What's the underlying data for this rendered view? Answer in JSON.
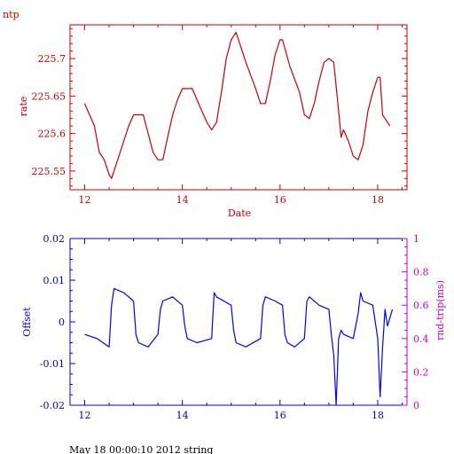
{
  "colors": {
    "rate": "#cc0000",
    "offset_series": "#0000ff",
    "offset_axis": "#0000cc",
    "roundtrip_axis": "#cc00cc",
    "background": "#ffffff",
    "footer": "#000000"
  },
  "footer": "May 18 00:00:10 2012 string",
  "chart_data": [
    {
      "type": "line",
      "title": "ntp",
      "xlabel": "Date",
      "ylabel": "rate",
      "xlim": [
        11.7,
        18.6
      ],
      "ylim": [
        225.525,
        225.745
      ],
      "xticks": [
        12,
        14,
        16,
        18
      ],
      "yticks": [
        225.55,
        225.6,
        225.65,
        225.7
      ],
      "ytick_labels": [
        "225.55",
        "225.6",
        "225.65",
        "225.7"
      ],
      "series": [
        {
          "x": [
            12.0,
            12.1,
            12.2,
            12.3,
            12.4,
            12.5,
            12.55,
            12.7,
            12.9,
            13.0,
            13.1,
            13.2,
            13.3,
            13.4,
            13.5,
            13.6,
            13.7,
            13.8,
            13.9,
            14.0,
            14.1,
            14.2,
            14.3,
            14.4,
            14.5,
            14.6,
            14.7,
            14.8,
            14.9,
            15.0,
            15.1,
            15.15,
            15.3,
            15.5,
            15.6,
            15.7,
            15.8,
            15.9,
            16.0,
            16.05,
            16.2,
            16.4,
            16.5,
            16.6,
            16.7,
            16.8,
            16.9,
            17.0,
            17.1,
            17.2,
            17.25,
            17.3,
            17.4,
            17.5,
            17.6,
            17.7,
            17.8,
            17.9,
            18.0,
            18.05,
            18.1,
            18.15,
            18.25
          ],
          "y": [
            225.64,
            225.625,
            225.61,
            225.575,
            225.565,
            225.545,
            225.54,
            225.57,
            225.61,
            225.625,
            225.625,
            225.625,
            225.6,
            225.575,
            225.565,
            225.565,
            225.595,
            225.625,
            225.645,
            225.66,
            225.66,
            225.66,
            225.645,
            225.63,
            225.615,
            225.605,
            225.615,
            225.655,
            225.7,
            225.725,
            225.735,
            225.725,
            225.695,
            225.66,
            225.64,
            225.64,
            225.67,
            225.705,
            225.725,
            225.725,
            225.69,
            225.655,
            225.625,
            225.62,
            225.64,
            225.67,
            225.695,
            225.7,
            225.695,
            225.63,
            225.595,
            225.605,
            225.59,
            225.57,
            225.565,
            225.585,
            225.63,
            225.655,
            225.675,
            225.675,
            225.625,
            225.62,
            225.61
          ]
        }
      ]
    },
    {
      "type": "line",
      "title": "",
      "xlabel": "",
      "ylabel": "Offset",
      "y2label": "rnd-trip(ms)",
      "xlim": [
        11.7,
        18.6
      ],
      "ylim": [
        -0.02,
        0.02
      ],
      "y2lim": [
        0,
        1
      ],
      "xticks": [
        12,
        14,
        16,
        18
      ],
      "yticks": [
        -0.02,
        -0.01,
        0,
        0.01,
        0.02
      ],
      "ytick_labels": [
        "-0.02",
        "-0.01",
        "0",
        "0.01",
        "0.02"
      ],
      "y2ticks": [
        0,
        0.2,
        0.4,
        0.6,
        0.8,
        1
      ],
      "y2tick_labels": [
        "0",
        "0.2",
        "0.4",
        "0.6",
        "0.8",
        "1"
      ],
      "series": [
        {
          "x": [
            12.0,
            12.25,
            12.5,
            12.55,
            12.6,
            12.8,
            13.0,
            13.05,
            13.1,
            13.3,
            13.5,
            13.55,
            13.6,
            13.8,
            14.0,
            14.05,
            14.1,
            14.3,
            14.6,
            14.65,
            14.7,
            15.0,
            15.05,
            15.1,
            15.3,
            15.6,
            15.65,
            15.7,
            15.9,
            16.05,
            16.1,
            16.15,
            16.3,
            16.5,
            16.55,
            16.6,
            16.8,
            17.0,
            17.05,
            17.1,
            17.15,
            17.2,
            17.25,
            17.3,
            17.5,
            17.6,
            17.65,
            17.7,
            17.9,
            18.0,
            18.05,
            18.1,
            18.15,
            18.2,
            18.3
          ],
          "y": [
            -0.003,
            -0.004,
            -0.006,
            0.004,
            0.008,
            0.007,
            0.005,
            -0.003,
            -0.005,
            -0.006,
            -0.003,
            0.003,
            0.005,
            0.006,
            0.004,
            -0.001,
            -0.004,
            -0.005,
            -0.004,
            0.007,
            0.006,
            0.004,
            -0.002,
            -0.005,
            -0.006,
            -0.004,
            0.004,
            0.006,
            0.005,
            0.004,
            -0.003,
            -0.005,
            -0.006,
            -0.004,
            0.005,
            0.006,
            0.004,
            0.003,
            -0.003,
            -0.008,
            -0.02,
            -0.004,
            -0.002,
            -0.003,
            -0.004,
            0.002,
            0.007,
            0.005,
            0.004,
            -0.004,
            -0.018,
            -0.006,
            0.003,
            -0.001,
            0.003
          ]
        }
      ]
    }
  ]
}
